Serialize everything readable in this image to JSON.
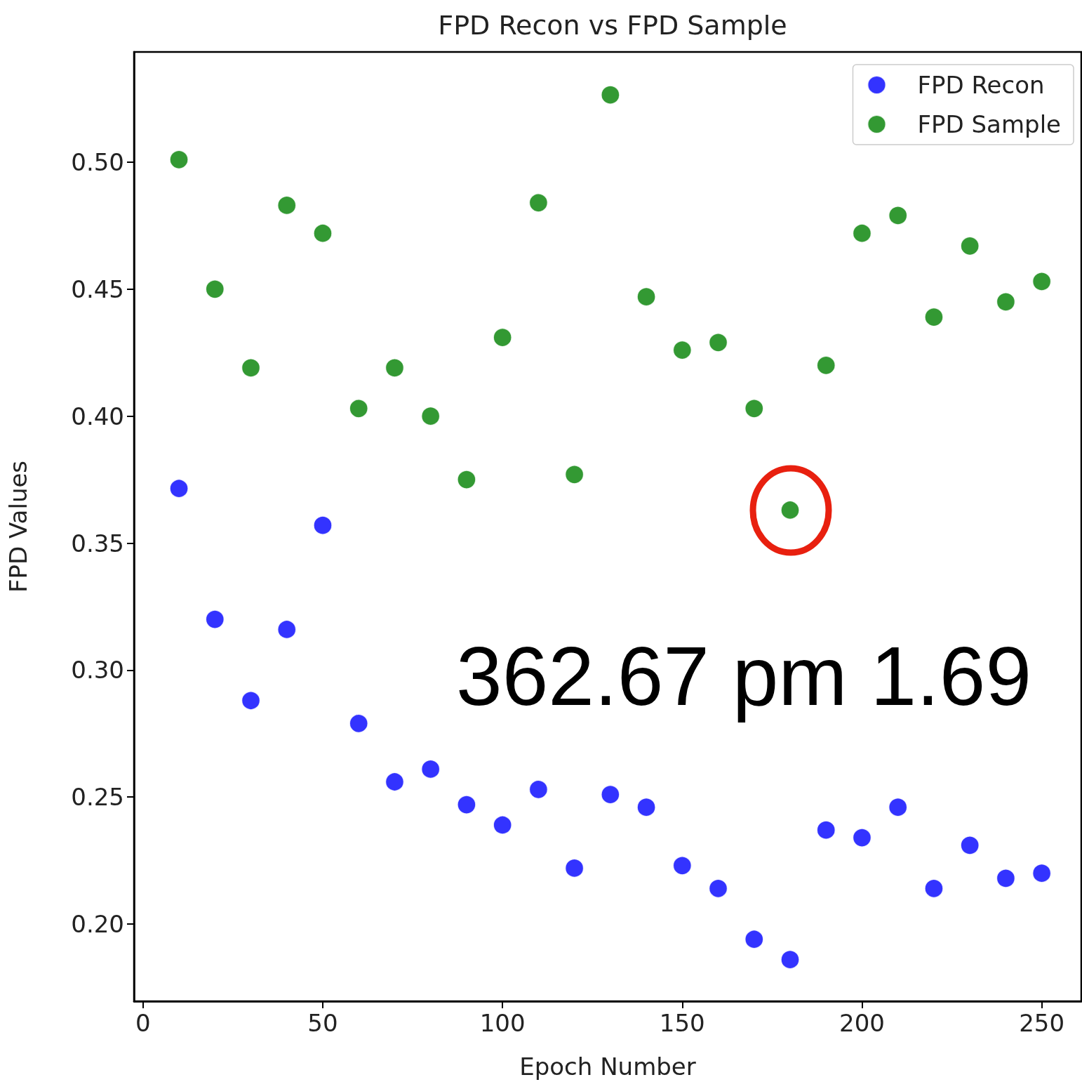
{
  "chart_data": {
    "type": "scatter",
    "title": "FPD Recon vs FPD Sample",
    "xlabel": "Epoch Number",
    "ylabel": "FPD Values",
    "x": [
      10,
      20,
      30,
      40,
      50,
      60,
      70,
      80,
      90,
      100,
      110,
      120,
      130,
      140,
      150,
      160,
      170,
      180,
      190,
      200,
      210,
      220,
      230,
      240,
      250
    ],
    "series": [
      {
        "name": "FPD Recon",
        "color": "#0000ff",
        "values": [
          0.3715,
          0.32,
          0.288,
          0.316,
          0.357,
          0.279,
          0.256,
          0.261,
          0.247,
          0.239,
          0.253,
          0.222,
          0.251,
          0.246,
          0.223,
          0.214,
          0.194,
          0.186,
          0.237,
          0.234,
          0.246,
          0.214,
          0.231,
          0.218,
          0.22
        ]
      },
      {
        "name": "FPD Sample",
        "color": "#008000",
        "values": [
          0.501,
          0.45,
          0.419,
          0.483,
          0.472,
          0.403,
          0.419,
          0.4,
          0.375,
          0.431,
          0.484,
          0.377,
          0.5265,
          0.447,
          0.426,
          0.429,
          0.403,
          0.363,
          0.42,
          0.472,
          0.479,
          0.439,
          0.467,
          0.445,
          0.453
        ]
      }
    ],
    "xlim": [
      -2.5,
      261
    ],
    "xticks": [
      0,
      50,
      100,
      150,
      200,
      250
    ],
    "ylim": [
      0.1696,
      0.5434
    ],
    "yticks": [
      {
        "value": 0.2,
        "label": "0.20"
      },
      {
        "value": 0.25,
        "label": "0.25"
      },
      {
        "value": 0.3,
        "label": "0.30"
      },
      {
        "value": 0.35,
        "label": "0.35"
      },
      {
        "value": 0.4,
        "label": "0.40"
      },
      {
        "value": 0.45,
        "label": "0.45"
      },
      {
        "value": 0.5,
        "label": "0.50"
      }
    ],
    "annotations": [
      "362.67 pm 1.69"
    ],
    "legend": "top right",
    "grid": false,
    "marker": "circle"
  }
}
